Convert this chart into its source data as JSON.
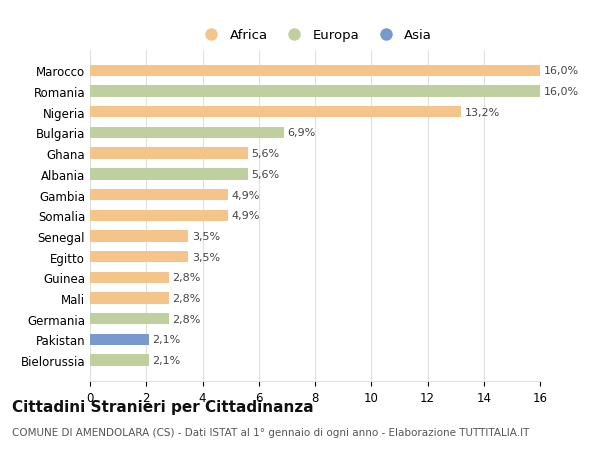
{
  "categories": [
    "Marocco",
    "Romania",
    "Nigeria",
    "Bulgaria",
    "Ghana",
    "Albania",
    "Gambia",
    "Somalia",
    "Senegal",
    "Egitto",
    "Guinea",
    "Mali",
    "Germania",
    "Pakistan",
    "Bielorussia"
  ],
  "values": [
    16.0,
    16.0,
    13.2,
    6.9,
    5.6,
    5.6,
    4.9,
    4.9,
    3.5,
    3.5,
    2.8,
    2.8,
    2.8,
    2.1,
    2.1
  ],
  "labels": [
    "16,0%",
    "16,0%",
    "13,2%",
    "6,9%",
    "5,6%",
    "5,6%",
    "4,9%",
    "4,9%",
    "3,5%",
    "3,5%",
    "2,8%",
    "2,8%",
    "2,8%",
    "2,1%",
    "2,1%"
  ],
  "continents": [
    "Africa",
    "Europa",
    "Africa",
    "Europa",
    "Africa",
    "Europa",
    "Africa",
    "Africa",
    "Africa",
    "Africa",
    "Africa",
    "Africa",
    "Europa",
    "Asia",
    "Europa"
  ],
  "colors": {
    "Africa": "#F5C48A",
    "Europa": "#BFCF9E",
    "Asia": "#7799CC"
  },
  "title": "Cittadini Stranieri per Cittadinanza",
  "subtitle": "COMUNE DI AMENDOLARA (CS) - Dati ISTAT al 1° gennaio di ogni anno - Elaborazione TUTTITALIA.IT",
  "xlim": [
    0,
    16
  ],
  "xticks": [
    0,
    2,
    4,
    6,
    8,
    10,
    12,
    14,
    16
  ],
  "background_color": "#ffffff",
  "grid_color": "#e0e0e0",
  "bar_height": 0.55,
  "label_fontsize": 8,
  "tick_fontsize": 8.5,
  "title_fontsize": 11,
  "subtitle_fontsize": 7.5
}
